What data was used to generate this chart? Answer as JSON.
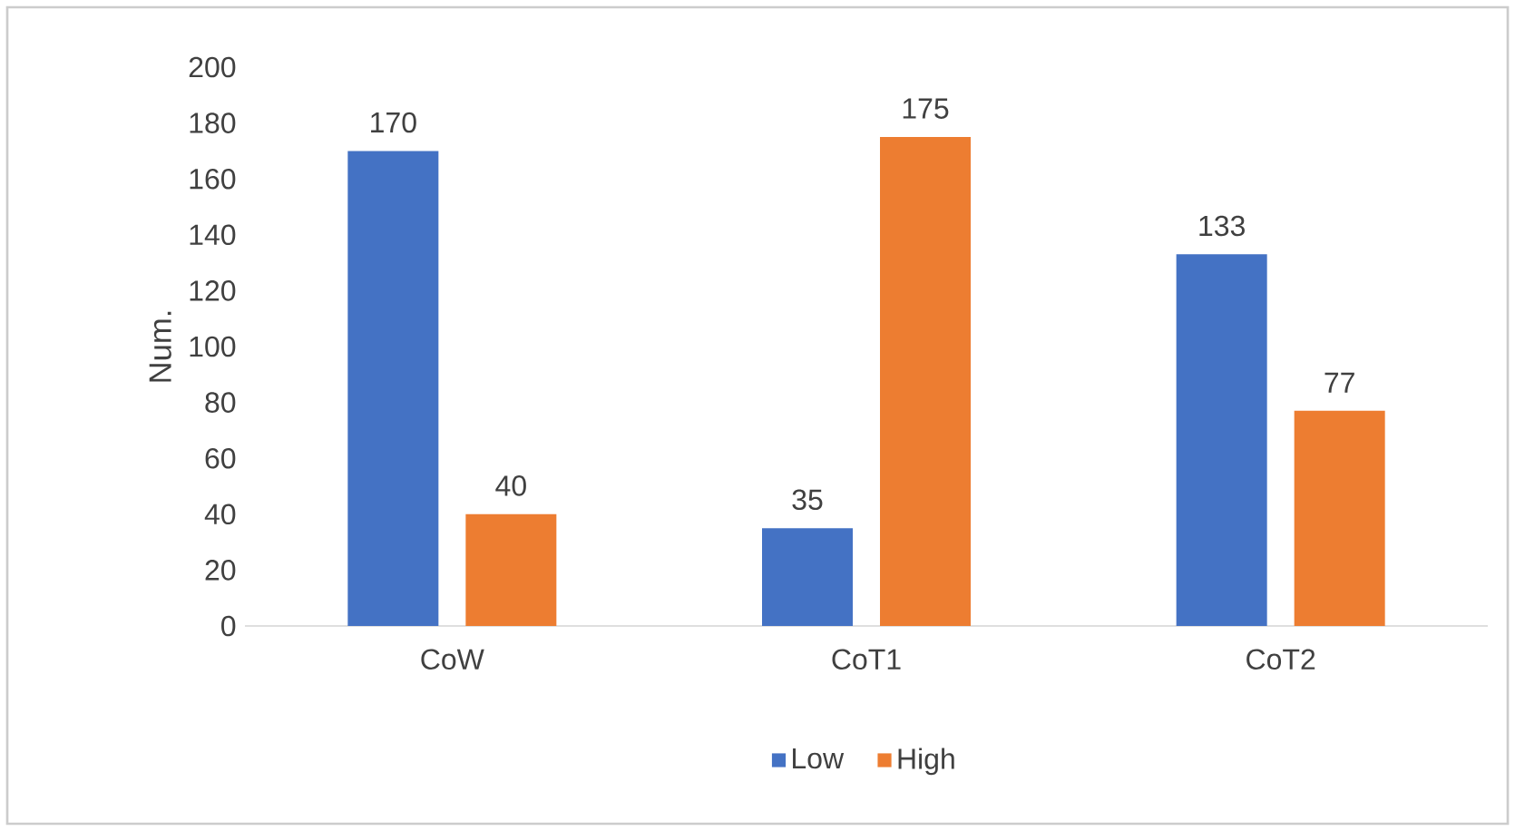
{
  "chart_data": {
    "type": "bar",
    "ylabel": "Num.",
    "categories": [
      "CoW",
      "CoT1",
      "CoT2"
    ],
    "series": [
      {
        "name": "Low",
        "color": "#4472c4",
        "values": [
          170,
          35,
          133
        ]
      },
      {
        "name": "High",
        "color": "#ed7d31",
        "values": [
          40,
          175,
          77
        ]
      }
    ],
    "ylim": [
      0,
      200
    ],
    "yticks": [
      0,
      20,
      40,
      60,
      80,
      100,
      120,
      140,
      160,
      180,
      200
    ],
    "data_labels": true,
    "legend": "bottom"
  }
}
